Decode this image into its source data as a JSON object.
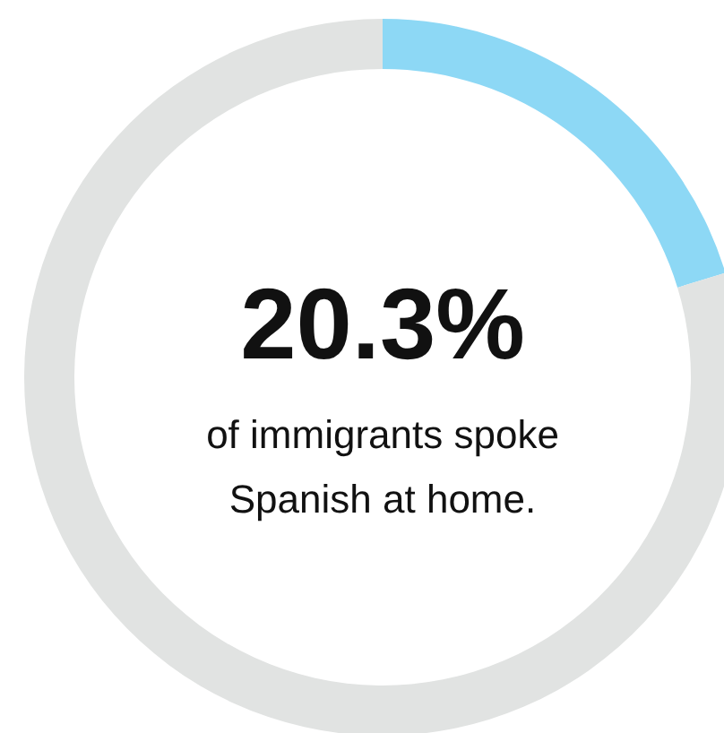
{
  "chart_data": {
    "type": "donut",
    "categories": [
      null,
      null
    ],
    "values": [
      20.3,
      79.7
    ],
    "colors": [
      "#8dd8f5",
      "#e1e3e2"
    ],
    "annotations": [
      "20.3%",
      "of immigrants spoke\nSpanish at home."
    ]
  }
}
